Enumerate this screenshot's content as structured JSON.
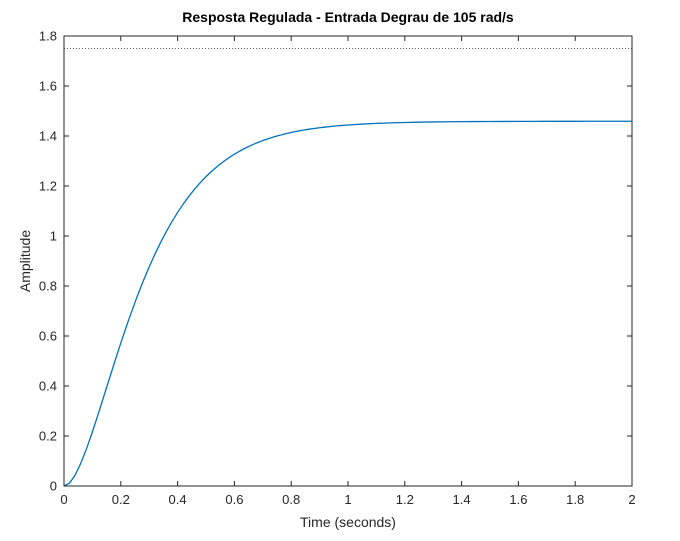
{
  "chart_data": {
    "type": "line",
    "title": "Resposta Regulada - Entrada Degrau de 105 rad/s",
    "xlabel": "Time (seconds)",
    "ylabel": "Amplitude",
    "xlim": [
      0,
      2
    ],
    "ylim": [
      0,
      1.8
    ],
    "xticks": [
      0,
      0.2,
      0.4,
      0.6,
      0.8,
      1,
      1.2,
      1.4,
      1.6,
      1.8,
      2
    ],
    "xtick_labels": [
      "0",
      "0.2",
      "0.4",
      "0.6",
      "0.8",
      "1",
      "1.2",
      "1.4",
      "1.6",
      "1.8",
      "2"
    ],
    "yticks": [
      0,
      0.2,
      0.4,
      0.6,
      0.8,
      1,
      1.2,
      1.4,
      1.6,
      1.8
    ],
    "ytick_labels": [
      "0",
      "0.2",
      "0.4",
      "0.6",
      "0.8",
      "1",
      "1.2",
      "1.4",
      "1.6",
      "1.8"
    ],
    "grid": false,
    "box": true,
    "colors": {
      "series": "#0072BD",
      "axes": "#262626",
      "reference": "#262626"
    },
    "reference_line": {
      "value": 1.75,
      "style": "dotted"
    },
    "series": [
      {
        "x": [
          0,
          0.02,
          0.04,
          0.06,
          0.08,
          0.1,
          0.12,
          0.14,
          0.16,
          0.18,
          0.2,
          0.22,
          0.24,
          0.26,
          0.28,
          0.3,
          0.32,
          0.34,
          0.36,
          0.38,
          0.4,
          0.42,
          0.44,
          0.46,
          0.48,
          0.5,
          0.52,
          0.54,
          0.56,
          0.58,
          0.6,
          0.62,
          0.64,
          0.66,
          0.68,
          0.7,
          0.72,
          0.74,
          0.76,
          0.78,
          0.8,
          0.82,
          0.84,
          0.86,
          0.88,
          0.9,
          0.92,
          0.94,
          0.96,
          0.98,
          1,
          1.05,
          1.1,
          1.15,
          1.2,
          1.25,
          1.3,
          1.35,
          1.4,
          1.45,
          1.5,
          1.55,
          1.6,
          1.65,
          1.7,
          1.75,
          1.8,
          1.85,
          1.9,
          1.95,
          2
        ],
        "values": [
          0,
          0.0124,
          0.0452,
          0.0929,
          0.1512,
          0.2165,
          0.2861,
          0.358,
          0.4304,
          0.502,
          0.5719,
          0.6393,
          0.7038,
          0.7649,
          0.8225,
          0.8765,
          0.9269,
          0.9738,
          1.0172,
          1.0573,
          1.0942,
          1.1282,
          1.1593,
          1.1878,
          1.2138,
          1.2375,
          1.2591,
          1.2787,
          1.2966,
          1.3127,
          1.3273,
          1.3405,
          1.3525,
          1.3633,
          1.373,
          1.3818,
          1.3897,
          1.3968,
          1.4032,
          1.409,
          1.4141,
          1.4188,
          1.4229,
          1.4267,
          1.4301,
          1.4331,
          1.4358,
          1.4382,
          1.4404,
          1.4423,
          1.4441,
          1.4477,
          1.4504,
          1.4525,
          1.4541,
          1.4553,
          1.4562,
          1.4569,
          1.4574,
          1.4578,
          1.4581,
          1.4583,
          1.4585,
          1.4586,
          1.4587,
          1.4588,
          1.4588,
          1.4589,
          1.4589,
          1.4589,
          1.4589
        ]
      }
    ]
  }
}
